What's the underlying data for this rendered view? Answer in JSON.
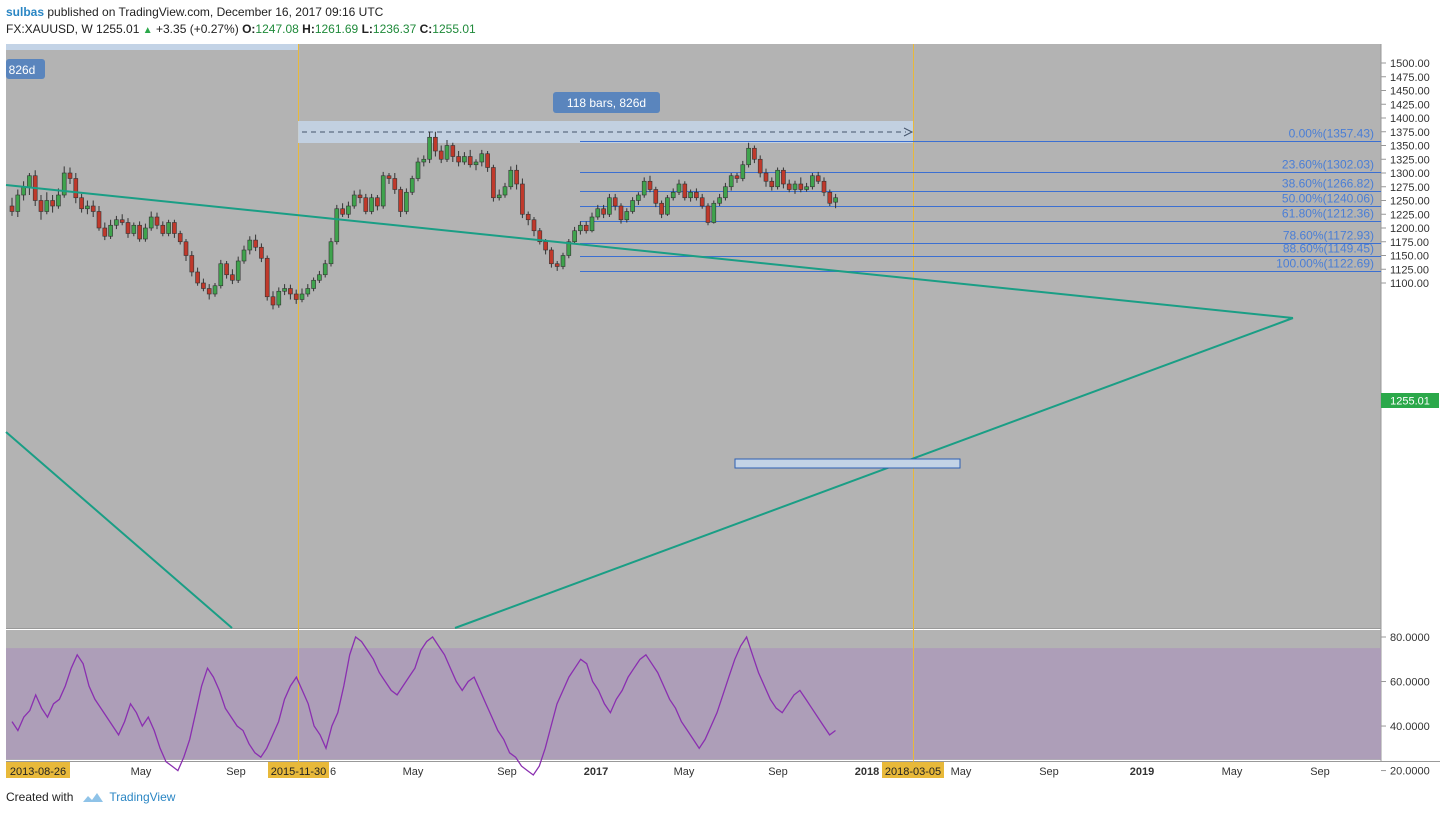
{
  "header": {
    "user": "sulbas",
    "published_text": " published on TradingView.com, December 16, 2017 09:16 UTC",
    "symbol": "FX:XAUUSD, W",
    "price": "1255.01",
    "change": "+3.35 (+0.27%)",
    "open_label": "O:",
    "open": "1247.08",
    "high_label": "H:",
    "high": "1261.69",
    "low_label": "L:",
    "low": "1236.37",
    "close_label": "C:",
    "close": "1255.01"
  },
  "footer": {
    "created_with": "Created with",
    "brand": "TradingView"
  },
  "colors": {
    "background": "#b3b3b3",
    "up_candle": "#3fa34d",
    "down_candle": "#c0392b",
    "trendline": "#1a9e85",
    "fib_line": "#3b6fd1",
    "fib_label": "#4a7ed6",
    "vline": "#e8b93a",
    "rsi_line": "#8a2fb0",
    "rsi_band": "#ab9ab8",
    "price_badge": "#2ba84a"
  },
  "chart_data": [
    {
      "type": "candlestick",
      "symbol": "FX:XAUUSD",
      "interval": "W",
      "y_axis_ticks": [
        "1500.00",
        "1475.00",
        "1450.00",
        "1425.00",
        "1400.00",
        "1375.00",
        "1350.00",
        "1325.00",
        "1300.00",
        "1275.00",
        "1250.00",
        "1225.00",
        "1200.00",
        "1175.00",
        "1150.00",
        "1125.00",
        "1100.00"
      ],
      "x_axis_labels": [
        "May",
        "Sep",
        "6",
        "May",
        "Sep",
        "2017",
        "May",
        "Sep",
        "2018",
        "May",
        "Sep",
        "2019",
        "May",
        "Sep"
      ],
      "x_axis_highlight_labels": [
        "2013-08-26",
        "2015-11-30",
        "2018-03-05"
      ],
      "last_price_label": "1255.01",
      "date_range_label": "118 bars, 826d",
      "date_range_label_left": "826d",
      "fibonacci_levels": [
        {
          "label": "0.00%(1357.43)",
          "price": 1357.43
        },
        {
          "label": "23.60%(1302.03)",
          "price": 1302.03
        },
        {
          "label": "38.60%(1266.82)",
          "price": 1266.82
        },
        {
          "label": "50.00%(1240.06)",
          "price": 1240.06
        },
        {
          "label": "61.80%(1212.36)",
          "price": 1212.36
        },
        {
          "label": "78.60%(1172.93)",
          "price": 1172.93
        },
        {
          "label": "88.60%(1149.45)",
          "price": 1149.45
        },
        {
          "label": "100.00%(1122.69)",
          "price": 1122.69
        }
      ],
      "candles": [
        [
          1240,
          1230,
          1255,
          1222
        ],
        [
          1230,
          1260,
          1270,
          1220
        ],
        [
          1260,
          1275,
          1285,
          1250
        ],
        [
          1275,
          1295,
          1300,
          1260
        ],
        [
          1295,
          1250,
          1305,
          1240
        ],
        [
          1250,
          1230,
          1260,
          1215
        ],
        [
          1230,
          1250,
          1265,
          1225
        ],
        [
          1250,
          1240,
          1260,
          1228
        ],
        [
          1240,
          1260,
          1272,
          1235
        ],
        [
          1260,
          1300,
          1312,
          1255
        ],
        [
          1300,
          1290,
          1310,
          1280
        ],
        [
          1290,
          1255,
          1300,
          1245
        ],
        [
          1255,
          1235,
          1262,
          1228
        ],
        [
          1235,
          1240,
          1250,
          1225
        ],
        [
          1240,
          1230,
          1250,
          1220
        ],
        [
          1230,
          1200,
          1240,
          1195
        ],
        [
          1200,
          1185,
          1210,
          1178
        ],
        [
          1185,
          1205,
          1215,
          1180
        ],
        [
          1205,
          1215,
          1222,
          1198
        ],
        [
          1215,
          1210,
          1225,
          1205
        ],
        [
          1210,
          1190,
          1218,
          1182
        ],
        [
          1190,
          1205,
          1210,
          1185
        ],
        [
          1205,
          1180,
          1212,
          1175
        ],
        [
          1180,
          1200,
          1208,
          1175
        ],
        [
          1200,
          1220,
          1230,
          1195
        ],
        [
          1220,
          1205,
          1228,
          1198
        ],
        [
          1205,
          1190,
          1212,
          1185
        ],
        [
          1190,
          1210,
          1215,
          1185
        ],
        [
          1210,
          1190,
          1215,
          1182
        ],
        [
          1190,
          1175,
          1195,
          1170
        ],
        [
          1175,
          1150,
          1180,
          1140
        ],
        [
          1150,
          1120,
          1158,
          1112
        ],
        [
          1120,
          1100,
          1128,
          1095
        ],
        [
          1100,
          1090,
          1108,
          1085
        ],
        [
          1090,
          1080,
          1098,
          1070
        ],
        [
          1080,
          1095,
          1100,
          1075
        ],
        [
          1095,
          1135,
          1142,
          1090
        ],
        [
          1135,
          1115,
          1140,
          1108
        ],
        [
          1115,
          1105,
          1125,
          1098
        ],
        [
          1105,
          1140,
          1148,
          1100
        ],
        [
          1140,
          1160,
          1168,
          1135
        ],
        [
          1160,
          1178,
          1185,
          1152
        ],
        [
          1178,
          1165,
          1188,
          1158
        ],
        [
          1165,
          1145,
          1172,
          1138
        ],
        [
          1145,
          1075,
          1150,
          1068
        ],
        [
          1075,
          1060,
          1085,
          1052
        ],
        [
          1060,
          1085,
          1092,
          1055
        ],
        [
          1085,
          1090,
          1098,
          1078
        ],
        [
          1090,
          1080,
          1097,
          1070
        ],
        [
          1080,
          1070,
          1088,
          1062
        ],
        [
          1070,
          1080,
          1090,
          1065
        ],
        [
          1080,
          1090,
          1098,
          1075
        ],
        [
          1090,
          1105,
          1110,
          1085
        ],
        [
          1105,
          1115,
          1122,
          1100
        ],
        [
          1115,
          1135,
          1142,
          1110
        ],
        [
          1135,
          1175,
          1182,
          1130
        ],
        [
          1175,
          1235,
          1242,
          1170
        ],
        [
          1235,
          1225,
          1245,
          1220
        ],
        [
          1225,
          1240,
          1248,
          1218
        ],
        [
          1240,
          1260,
          1268,
          1235
        ],
        [
          1260,
          1255,
          1270,
          1245
        ],
        [
          1255,
          1230,
          1262,
          1225
        ],
        [
          1230,
          1255,
          1262,
          1225
        ],
        [
          1255,
          1240,
          1260,
          1232
        ],
        [
          1240,
          1295,
          1302,
          1235
        ],
        [
          1295,
          1290,
          1300,
          1280
        ],
        [
          1290,
          1270,
          1300,
          1262
        ],
        [
          1270,
          1230,
          1275,
          1220
        ],
        [
          1230,
          1265,
          1272,
          1225
        ],
        [
          1265,
          1290,
          1295,
          1260
        ],
        [
          1290,
          1320,
          1328,
          1285
        ],
        [
          1320,
          1325,
          1332,
          1312
        ],
        [
          1325,
          1365,
          1375,
          1318
        ],
        [
          1365,
          1340,
          1375,
          1330
        ],
        [
          1340,
          1325,
          1350,
          1318
        ],
        [
          1325,
          1350,
          1360,
          1320
        ],
        [
          1350,
          1330,
          1355,
          1320
        ],
        [
          1330,
          1320,
          1340,
          1312
        ],
        [
          1320,
          1330,
          1338,
          1315
        ],
        [
          1330,
          1315,
          1342,
          1310
        ],
        [
          1315,
          1320,
          1325,
          1305
        ],
        [
          1320,
          1335,
          1342,
          1312
        ],
        [
          1335,
          1310,
          1340,
          1302
        ],
        [
          1310,
          1255,
          1315,
          1248
        ],
        [
          1255,
          1260,
          1270,
          1250
        ],
        [
          1260,
          1275,
          1282,
          1255
        ],
        [
          1275,
          1305,
          1312,
          1270
        ],
        [
          1305,
          1280,
          1315,
          1270
        ],
        [
          1280,
          1225,
          1290,
          1218
        ],
        [
          1225,
          1215,
          1230,
          1205
        ],
        [
          1215,
          1195,
          1220,
          1185
        ],
        [
          1195,
          1175,
          1200,
          1170
        ],
        [
          1175,
          1160,
          1180,
          1152
        ],
        [
          1160,
          1135,
          1165,
          1128
        ],
        [
          1135,
          1130,
          1140,
          1122
        ],
        [
          1130,
          1150,
          1155,
          1125
        ],
        [
          1150,
          1175,
          1180,
          1145
        ],
        [
          1175,
          1195,
          1202,
          1170
        ],
        [
          1195,
          1205,
          1212,
          1188
        ],
        [
          1205,
          1195,
          1212,
          1190
        ],
        [
          1195,
          1220,
          1228,
          1192
        ],
        [
          1220,
          1235,
          1242,
          1215
        ],
        [
          1235,
          1225,
          1242,
          1218
        ],
        [
          1225,
          1255,
          1262,
          1220
        ],
        [
          1255,
          1240,
          1262,
          1232
        ],
        [
          1240,
          1215,
          1245,
          1208
        ],
        [
          1215,
          1230,
          1236,
          1210
        ],
        [
          1230,
          1250,
          1256,
          1226
        ],
        [
          1250,
          1260,
          1265,
          1242
        ],
        [
          1260,
          1285,
          1292,
          1255
        ],
        [
          1285,
          1270,
          1295,
          1265
        ],
        [
          1270,
          1245,
          1275,
          1238
        ],
        [
          1245,
          1225,
          1250,
          1218
        ],
        [
          1225,
          1255,
          1260,
          1222
        ],
        [
          1255,
          1265,
          1272,
          1250
        ],
        [
          1265,
          1280,
          1288,
          1260
        ],
        [
          1280,
          1255,
          1285,
          1250
        ],
        [
          1255,
          1265,
          1270,
          1248
        ],
        [
          1265,
          1255,
          1272,
          1250
        ],
        [
          1255,
          1240,
          1262,
          1235
        ],
        [
          1240,
          1210,
          1245,
          1205
        ],
        [
          1210,
          1245,
          1250,
          1208
        ],
        [
          1245,
          1255,
          1262,
          1240
        ],
        [
          1255,
          1275,
          1282,
          1250
        ],
        [
          1275,
          1295,
          1300,
          1268
        ],
        [
          1295,
          1290,
          1300,
          1282
        ],
        [
          1290,
          1315,
          1322,
          1285
        ],
        [
          1315,
          1345,
          1355,
          1310
        ],
        [
          1345,
          1325,
          1350,
          1318
        ],
        [
          1325,
          1300,
          1332,
          1292
        ],
        [
          1300,
          1285,
          1308,
          1275
        ],
        [
          1285,
          1275,
          1292,
          1268
        ],
        [
          1275,
          1305,
          1310,
          1270
        ],
        [
          1305,
          1280,
          1310,
          1272
        ],
        [
          1280,
          1270,
          1288,
          1265
        ],
        [
          1270,
          1280,
          1286,
          1262
        ],
        [
          1280,
          1270,
          1292,
          1265
        ],
        [
          1270,
          1275,
          1282,
          1266
        ],
        [
          1275,
          1295,
          1300,
          1270
        ],
        [
          1295,
          1285,
          1302,
          1280
        ],
        [
          1285,
          1265,
          1292,
          1258
        ],
        [
          1265,
          1245,
          1270,
          1240
        ],
        [
          1247,
          1255,
          1262,
          1236
        ]
      ]
    },
    {
      "type": "line",
      "indicator": "RSI",
      "y_axis_ticks": [
        "80.0000",
        "60.0000",
        "40.0000",
        "20.0000"
      ],
      "ylim": [
        15,
        85
      ],
      "band": [
        25,
        75
      ],
      "values": [
        42,
        38,
        44,
        47,
        54,
        48,
        44,
        50,
        52,
        58,
        66,
        72,
        68,
        58,
        52,
        48,
        44,
        40,
        36,
        42,
        50,
        46,
        40,
        44,
        38,
        30,
        24,
        22,
        20,
        26,
        34,
        46,
        58,
        66,
        62,
        56,
        48,
        44,
        40,
        38,
        32,
        28,
        26,
        30,
        36,
        42,
        52,
        58,
        62,
        56,
        50,
        40,
        36,
        30,
        40,
        46,
        58,
        72,
        80,
        78,
        74,
        70,
        64,
        60,
        56,
        54,
        58,
        62,
        66,
        74,
        78,
        80,
        76,
        72,
        66,
        60,
        56,
        60,
        62,
        56,
        50,
        44,
        38,
        34,
        28,
        26,
        22,
        20,
        18,
        22,
        30,
        40,
        50,
        56,
        62,
        66,
        70,
        68,
        60,
        56,
        50,
        46,
        52,
        56,
        62,
        66,
        70,
        72,
        68,
        64,
        58,
        52,
        48,
        42,
        38,
        34,
        30,
        34,
        40,
        46,
        54,
        62,
        70,
        76,
        80,
        72,
        64,
        58,
        52,
        48,
        46,
        50,
        54,
        56,
        52,
        48,
        44,
        40,
        36,
        38
      ]
    }
  ]
}
